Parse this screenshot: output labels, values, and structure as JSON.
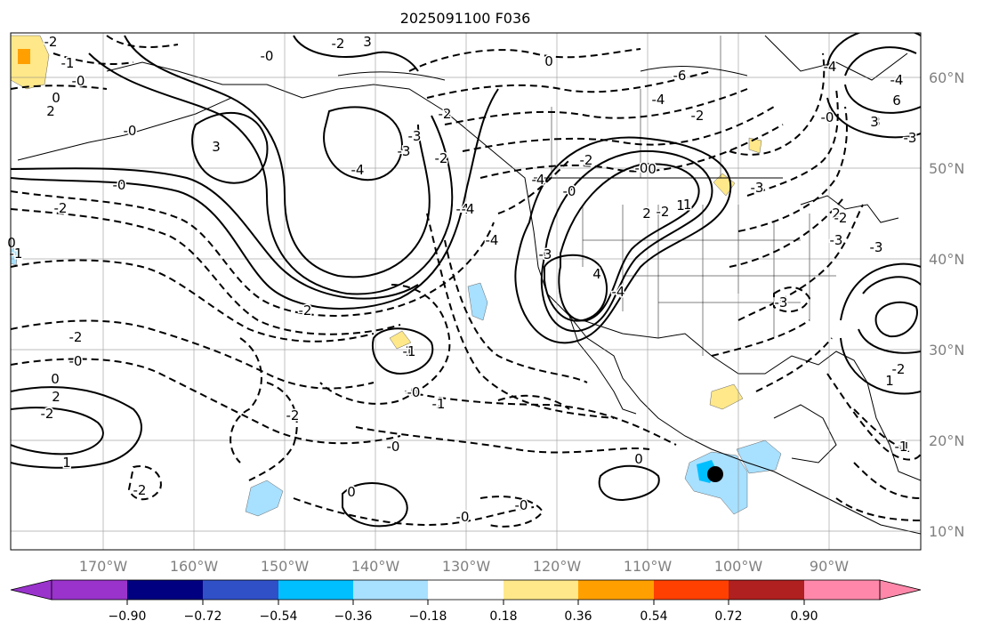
{
  "title": "2025091100 F036",
  "longitude_labels": [
    "170°W",
    "160°W",
    "150°W",
    "140°W",
    "130°W",
    "120°W",
    "110°W",
    "100°W",
    "90°W"
  ],
  "latitude_labels": [
    "60°N",
    "50°N",
    "40°N",
    "30°N",
    "20°N",
    "10°N"
  ],
  "colorbar": {
    "tick_labels": [
      "−0.90",
      "−0.72",
      "−0.54",
      "−0.36",
      "−0.18",
      "0.18",
      "0.36",
      "0.54",
      "0.72",
      "0.90"
    ],
    "under_color": "#9933cc",
    "over_color": "#ff88aa",
    "bin_colors": [
      "#000080",
      "#3050c8",
      "#00bfff",
      "#a8e0ff",
      "#ffffff",
      "#ffe88a",
      "#ffa000",
      "#ff4000",
      "#b02020"
    ]
  },
  "contour_labels": [
    "-2",
    "-1",
    "-0",
    "0",
    "2",
    "-0",
    "3",
    "-0",
    "3",
    "-2",
    "-1",
    "-2",
    "-0",
    "0",
    "-4",
    "-3",
    "-3",
    "-2",
    "-2",
    "-4",
    "0",
    "-6",
    "-4",
    "-4",
    "-2",
    "-2",
    "-0",
    "-0",
    "0",
    "-3",
    "-2",
    "-1",
    "-3",
    "2",
    "3",
    "-3",
    "-4",
    "-4",
    "3",
    "4",
    "-4",
    "-2",
    "-2",
    "-0",
    "0",
    "2",
    "1",
    "-2",
    "-2",
    "-0",
    "-2",
    "-0",
    "-1",
    "-0",
    "-0",
    "0",
    "-0",
    "0",
    "-1",
    "1",
    "1",
    "-1",
    "-2",
    "-3",
    "-2",
    "-3",
    "-2",
    "-0",
    "-3",
    "6",
    "3",
    "-1",
    "-0",
    "2",
    "1",
    "-4",
    "-4"
  ],
  "highlighted_point": "storm center marker"
}
